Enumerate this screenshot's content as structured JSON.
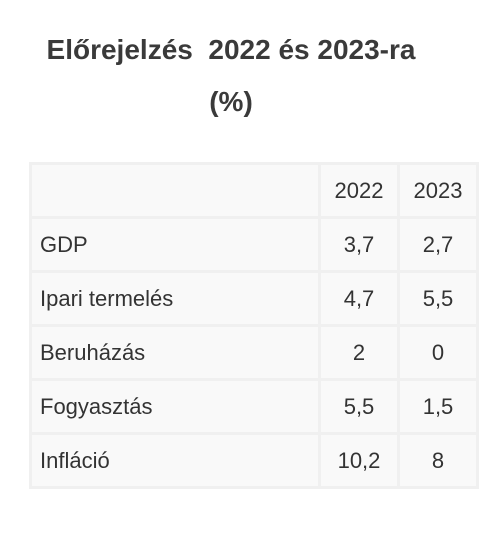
{
  "title": "Előrejelzés  2022 és 2023-ra (%)",
  "table": {
    "header": [
      "2022",
      "2023"
    ],
    "rows": [
      [
        "GDP",
        "3,7",
        "2,7"
      ],
      [
        "Ipari termelés",
        "4,7",
        "5,5"
      ],
      [
        "Beruházás",
        "2",
        "0"
      ],
      [
        "Fogyasztás",
        "5,5",
        "1,5"
      ],
      [
        "Infláció",
        "10,2",
        "8"
      ]
    ]
  }
}
